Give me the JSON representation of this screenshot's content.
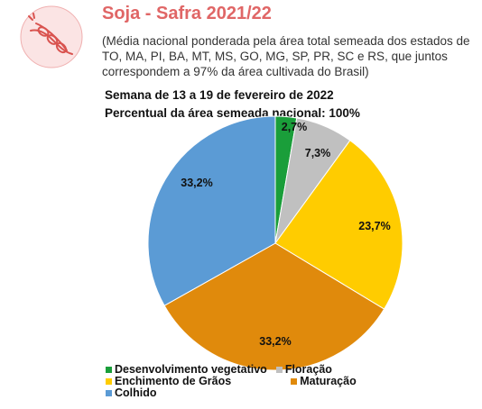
{
  "header": {
    "title": "Soja - Safra 2021/22",
    "subtitle": "(Média nacional ponderada pela área total semeada dos estados de TO, MA, PI, BA, MT, MS, GO, MG, SP, PR, SC e RS, que juntos correspondem a 97% da área cultivada do Brasil)",
    "week": "Semana de 13 a 19 de fevereiro de 2022",
    "area_pct": "Percentual da área semeada nacional: 100%"
  },
  "icon": {
    "logo": "soybean-pod-icon",
    "color": "#e06666"
  },
  "chart_data": {
    "type": "pie",
    "start_angle_deg": 0,
    "direction": "clockwise",
    "slices": [
      {
        "label": "Desenvolvimento vegetativo",
        "value": 2.7,
        "display": "2,7%",
        "color": "#1a9e3a"
      },
      {
        "label": "Floração",
        "value": 7.3,
        "display": "7,3%",
        "color": "#c0c0c0"
      },
      {
        "label": "Enchimento de Grãos",
        "value": 23.7,
        "display": "23,7%",
        "color": "#ffcc00"
      },
      {
        "label": "Maturação",
        "value": 33.2,
        "display": "33,2%",
        "color": "#e08a0c"
      },
      {
        "label": "Colhido",
        "value": 33.2,
        "display": "33,2%",
        "color": "#5b9bd5"
      }
    ],
    "legend_position": "bottom"
  }
}
